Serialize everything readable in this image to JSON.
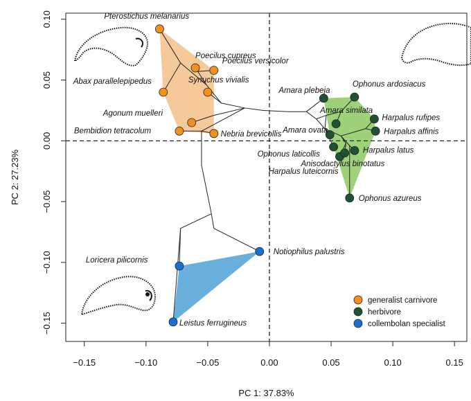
{
  "chart_data": {
    "type": "scatter",
    "xlabel": "PC 1: 37.83%",
    "ylabel": "PC 2: 27.23%",
    "xlim": [
      -0.165,
      0.16
    ],
    "ylim": [
      -0.165,
      0.105
    ],
    "xticks": [
      -0.15,
      -0.1,
      -0.05,
      0.0,
      0.05,
      0.1,
      0.15
    ],
    "xtick_labels": [
      "−0.15",
      "−0.10",
      "−0.05",
      "0.00",
      "0.05",
      "0.10",
      "0.15"
    ],
    "yticks": [
      -0.15,
      -0.1,
      -0.05,
      0.0,
      0.05,
      0.1
    ],
    "ytick_labels": [
      "−0.15",
      "−0.10",
      "−0.05",
      "0.00",
      "0.05",
      "0.10"
    ],
    "reference_lines": {
      "x": 0,
      "y": 0,
      "style": "dashed"
    },
    "legend_position": "bottom-right",
    "groups": [
      {
        "name": "generalist carnivore",
        "color": "#f0901e",
        "hull_color": "#f6c99a"
      },
      {
        "name": "herbivore",
        "color": "#1f5230",
        "hull_color": "#9fd07a"
      },
      {
        "name": "collembolan specialist",
        "color": "#1a6fd0",
        "hull_color": "#6aaedc"
      }
    ],
    "points": [
      {
        "label": "Pterostichus melanarius",
        "group": 0,
        "x": -0.089,
        "y": 0.092
      },
      {
        "label": "Poecilus cupreus",
        "group": 0,
        "x": -0.06,
        "y": 0.06
      },
      {
        "label": "Poecilus versicolor",
        "group": 0,
        "x": -0.045,
        "y": 0.058
      },
      {
        "label": "Abax parallelepipedus",
        "group": 0,
        "x": -0.086,
        "y": 0.04
      },
      {
        "label": "Synuchus vivialis",
        "group": 0,
        "x": -0.05,
        "y": 0.04
      },
      {
        "label": "Agonum muelleri",
        "group": 0,
        "x": -0.063,
        "y": 0.015
      },
      {
        "label": "Bembidion tetracolum",
        "group": 0,
        "x": -0.073,
        "y": 0.008
      },
      {
        "label": "Nebria brevicollis",
        "group": 0,
        "x": -0.045,
        "y": 0.006
      },
      {
        "label": "Amara plebeja",
        "group": 1,
        "x": 0.044,
        "y": 0.035
      },
      {
        "label": "Ophonus ardosiacus",
        "group": 1,
        "x": 0.069,
        "y": 0.036
      },
      {
        "label": "Amara similata",
        "group": 1,
        "x": 0.054,
        "y": 0.014
      },
      {
        "label": "Amara ovata",
        "group": 1,
        "x": 0.049,
        "y": 0.005
      },
      {
        "label": "Harpalus rufipes",
        "group": 1,
        "x": 0.085,
        "y": 0.018
      },
      {
        "label": "Harpalus affinis",
        "group": 1,
        "x": 0.086,
        "y": 0.008
      },
      {
        "label": "Ophonus laticollis",
        "group": 1,
        "x": 0.052,
        "y": -0.005
      },
      {
        "label": "Harpalus latus",
        "group": 1,
        "x": 0.069,
        "y": -0.008
      },
      {
        "label": "Anisodactylus binotatus",
        "group": 1,
        "x": 0.057,
        "y": -0.013
      },
      {
        "label": "Harpalus luteicornis",
        "group": 1,
        "x": 0.061,
        "y": -0.01
      },
      {
        "label": "Ophonus azureus",
        "group": 1,
        "x": 0.065,
        "y": -0.047
      },
      {
        "label": "Notiophilus palustris",
        "group": 2,
        "x": -0.008,
        "y": -0.091
      },
      {
        "label": "Loricera pilicornis",
        "group": 2,
        "x": -0.073,
        "y": -0.103
      },
      {
        "label": "Leistus ferrugineus",
        "group": 2,
        "x": -0.078,
        "y": -0.149
      }
    ],
    "hulls": [
      [
        0,
        2,
        7,
        6,
        3
      ],
      [
        8,
        9,
        12,
        13,
        18,
        14,
        11
      ],
      [
        19,
        20,
        21
      ]
    ],
    "phylogeny_nodes": [
      {
        "x": -0.072,
        "y": 0.064
      },
      {
        "x": -0.051,
        "y": 0.046
      },
      {
        "x": -0.058,
        "y": 0.057
      },
      {
        "x": -0.039,
        "y": 0.031
      },
      {
        "x": -0.02,
        "y": 0.027
      },
      {
        "x": -0.005,
        "y": 0.025
      },
      {
        "x": -0.045,
        "y": 0.021
      },
      {
        "x": -0.055,
        "y": 0.008
      },
      {
        "x": -0.055,
        "y": -0.02
      },
      {
        "x": -0.05,
        "y": -0.045
      },
      {
        "x": -0.047,
        "y": -0.06
      },
      {
        "x": -0.045,
        "y": -0.072
      },
      {
        "x": -0.072,
        "y": -0.072
      },
      {
        "x": 0.015,
        "y": 0.024
      },
      {
        "x": 0.03,
        "y": 0.024
      },
      {
        "x": 0.038,
        "y": 0.018
      },
      {
        "x": 0.046,
        "y": 0.021
      },
      {
        "x": 0.058,
        "y": 0.024
      },
      {
        "x": 0.045,
        "y": 0.01
      },
      {
        "x": 0.058,
        "y": 0.004
      },
      {
        "x": 0.065,
        "y": -0.004
      },
      {
        "x": 0.062,
        "y": -0.002
      },
      {
        "x": 0.078,
        "y": 0.01
      }
    ],
    "phylogeny_edges": [
      [
        "p0",
        "n0"
      ],
      [
        "n0",
        "p3"
      ],
      [
        "n0",
        "n1"
      ],
      [
        "n1",
        "n2"
      ],
      [
        "n2",
        "p1"
      ],
      [
        "n2",
        "p2"
      ],
      [
        "n1",
        "n3"
      ],
      [
        "n3",
        "p4"
      ],
      [
        "n3",
        "n4"
      ],
      [
        "n4",
        "n5"
      ],
      [
        "n4",
        "n6"
      ],
      [
        "n6",
        "p5"
      ],
      [
        "n4",
        "n7"
      ],
      [
        "n7",
        "p6"
      ],
      [
        "n7",
        "p7"
      ],
      [
        "n7",
        "n8"
      ],
      [
        "n8",
        "n9"
      ],
      [
        "n9",
        "n10"
      ],
      [
        "n10",
        "n11"
      ],
      [
        "n11",
        "p19"
      ],
      [
        "n10",
        "n12"
      ],
      [
        "n12",
        "p20"
      ],
      [
        "n12",
        "p21"
      ],
      [
        "n5",
        "n13"
      ],
      [
        "n13",
        "n14"
      ],
      [
        "n14",
        "p8"
      ],
      [
        "n14",
        "n15"
      ],
      [
        "n15",
        "p11"
      ],
      [
        "n15",
        "n16"
      ],
      [
        "n16",
        "n17"
      ],
      [
        "n17",
        "p9"
      ],
      [
        "n17",
        "p10"
      ],
      [
        "n16",
        "n18"
      ],
      [
        "n18",
        "p14"
      ],
      [
        "n18",
        "n19"
      ],
      [
        "n19",
        "n21"
      ],
      [
        "n21",
        "p16"
      ],
      [
        "n21",
        "p17"
      ],
      [
        "n19",
        "n20"
      ],
      [
        "n20",
        "p15"
      ],
      [
        "n20",
        "p18"
      ],
      [
        "n19",
        "n22"
      ],
      [
        "n22",
        "p12"
      ],
      [
        "n22",
        "p13"
      ]
    ]
  }
}
